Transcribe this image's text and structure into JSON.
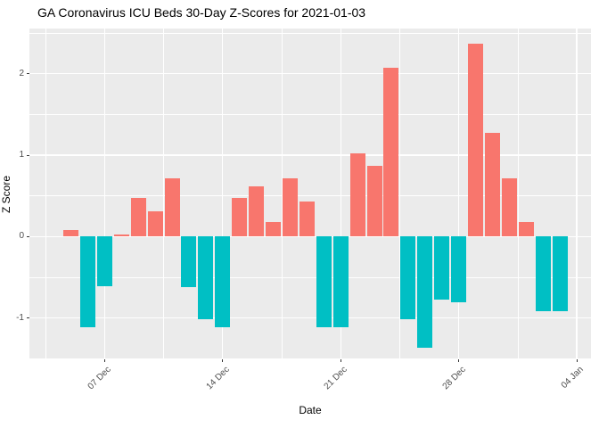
{
  "chart_data": {
    "type": "bar",
    "title": "GA Coronavirus ICU Beds 30-Day Z-Scores for 2021-01-03",
    "xlabel": "Date",
    "ylabel": "Z Score",
    "categories": [
      "2020-12-05",
      "2020-12-06",
      "2020-12-07",
      "2020-12-08",
      "2020-12-09",
      "2020-12-10",
      "2020-12-11",
      "2020-12-12",
      "2020-12-13",
      "2020-12-14",
      "2020-12-15",
      "2020-12-16",
      "2020-12-17",
      "2020-12-18",
      "2020-12-19",
      "2020-12-20",
      "2020-12-21",
      "2020-12-22",
      "2020-12-23",
      "2020-12-24",
      "2020-12-25",
      "2020-12-26",
      "2020-12-27",
      "2020-12-28",
      "2020-12-29",
      "2020-12-30",
      "2020-12-31",
      "2021-01-01",
      "2021-01-02",
      "2021-01-03"
    ],
    "values": [
      0.08,
      -1.11,
      -0.61,
      0.03,
      0.47,
      0.31,
      0.72,
      -0.62,
      -1.02,
      -1.11,
      0.47,
      0.62,
      0.18,
      0.72,
      0.43,
      -1.11,
      -1.11,
      1.02,
      0.87,
      2.07,
      -1.01,
      -1.37,
      -0.77,
      -0.81,
      2.37,
      1.27,
      0.72,
      0.18,
      -0.92,
      -0.92
    ],
    "x_ticks": [
      {
        "label": "07 Dec",
        "day_index": 2
      },
      {
        "label": "14 Dec",
        "day_index": 9
      },
      {
        "label": "21 Dec",
        "day_index": 16
      },
      {
        "label": "28 Dec",
        "day_index": 23
      },
      {
        "label": "04 Jan",
        "day_index": 30
      }
    ],
    "y_ticks": [
      2,
      1,
      0,
      -1
    ],
    "ylim": [
      -1.51,
      2.56
    ],
    "grid": true,
    "legend": "none",
    "colors": {
      "positive": "#F8766D",
      "negative": "#00BFC4",
      "panel_bg": "#EBEBEB",
      "grid": "#FFFFFF",
      "axis_text": "#4D4D4D",
      "tick_mark": "#333333",
      "title_text": "#000000"
    }
  }
}
